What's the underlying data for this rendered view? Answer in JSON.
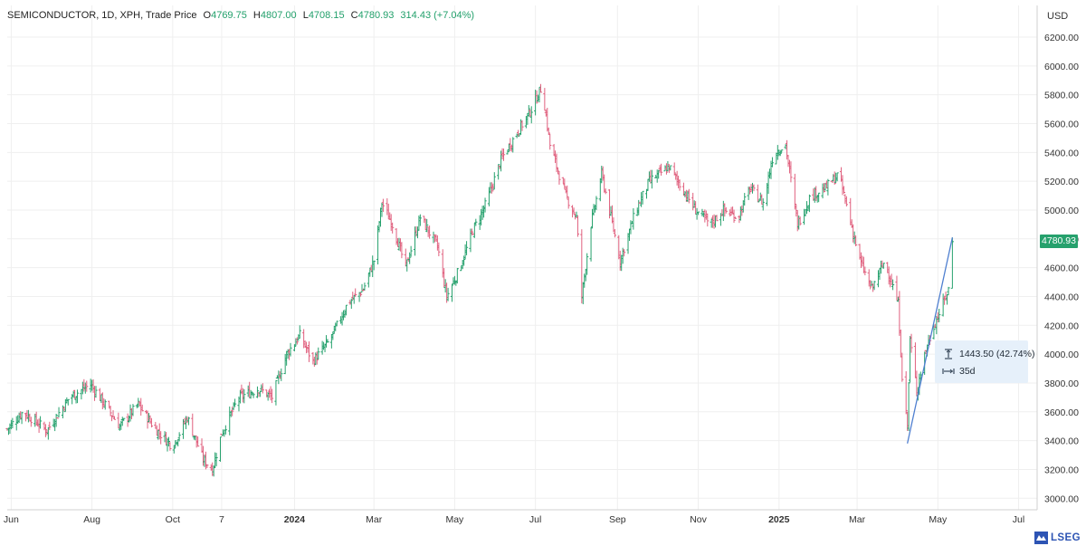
{
  "header": {
    "symbol": "SEMICONDUCTOR, 1D, XPH, Trade Price",
    "open_label": "O",
    "open_value": "4769.75",
    "high_label": "H",
    "high_value": "4807.00",
    "low_label": "L",
    "low_value": "4708.15",
    "close_label": "C",
    "close_value": "4780.93",
    "change": "314.43 (+7.04%)"
  },
  "currency": "USD",
  "last_price_badge": "4780.93",
  "measure": {
    "price_change": "1443.50 (42.74%)",
    "duration": "35d"
  },
  "logo": "LSEG",
  "colors": {
    "up": "#26a16d",
    "down": "#e0607e",
    "trendline": "#4f7fd0",
    "measure_bg": "#e6f0fa",
    "logo": "#2d54b4"
  },
  "chart_data": {
    "type": "ohlc",
    "x_tick_labels": [
      {
        "label": "Jun",
        "date": "2023-06-01",
        "bold": false
      },
      {
        "label": "Aug",
        "date": "2023-08-01",
        "bold": false
      },
      {
        "label": "Oct",
        "date": "2023-10-01",
        "bold": false
      },
      {
        "label": "7",
        "date": "2023-11-07",
        "bold": false
      },
      {
        "label": "2024",
        "date": "2024-01-01",
        "bold": true
      },
      {
        "label": "Mar",
        "date": "2024-03-01",
        "bold": false
      },
      {
        "label": "May",
        "date": "2024-05-01",
        "bold": false
      },
      {
        "label": "Jul",
        "date": "2024-07-01",
        "bold": false
      },
      {
        "label": "Sep",
        "date": "2024-09-01",
        "bold": false
      },
      {
        "label": "Nov",
        "date": "2024-11-01",
        "bold": false
      },
      {
        "label": "2025",
        "date": "2025-01-01",
        "bold": true
      },
      {
        "label": "Mar",
        "date": "2025-03-01",
        "bold": false
      },
      {
        "label": "May",
        "date": "2025-05-01",
        "bold": false
      },
      {
        "label": "Jul",
        "date": "2025-07-01",
        "bold": false
      }
    ],
    "y_tick_labels": [
      "3000.00",
      "3200.00",
      "3400.00",
      "3600.00",
      "3800.00",
      "4000.00",
      "4200.00",
      "4400.00",
      "4600.00",
      "4800.00",
      "5000.00",
      "5200.00",
      "5400.00",
      "5600.00",
      "5800.00",
      "6000.00",
      "6200.00"
    ],
    "y_ticks": [
      3000,
      3200,
      3400,
      3600,
      3800,
      4000,
      4200,
      4400,
      4600,
      4800,
      5000,
      5200,
      5400,
      5600,
      5800,
      6000,
      6200
    ],
    "ylim": [
      2920,
      6420
    ],
    "xlim": [
      "2023-05-29",
      "2025-07-15"
    ],
    "grid": true,
    "close_path": [
      [
        "2023-05-29",
        3480
      ],
      [
        "2023-06-10",
        3600
      ],
      [
        "2023-06-28",
        3470
      ],
      [
        "2023-07-15",
        3700
      ],
      [
        "2023-07-31",
        3790
      ],
      [
        "2023-08-10",
        3660
      ],
      [
        "2023-08-22",
        3500
      ],
      [
        "2023-09-05",
        3650
      ],
      [
        "2023-09-18",
        3480
      ],
      [
        "2023-10-01",
        3360
      ],
      [
        "2023-10-12",
        3560
      ],
      [
        "2023-10-24",
        3270
      ],
      [
        "2023-10-31",
        3200
      ],
      [
        "2023-11-07",
        3450
      ],
      [
        "2023-11-20",
        3700
      ],
      [
        "2023-12-05",
        3760
      ],
      [
        "2023-12-15",
        3700
      ],
      [
        "2023-12-26",
        4000
      ],
      [
        "2024-01-05",
        4130
      ],
      [
        "2024-01-15",
        3950
      ],
      [
        "2024-01-28",
        4100
      ],
      [
        "2024-02-10",
        4350
      ],
      [
        "2024-02-22",
        4450
      ],
      [
        "2024-03-01",
        4650
      ],
      [
        "2024-03-07",
        5050
      ],
      [
        "2024-03-15",
        4900
      ],
      [
        "2024-03-25",
        4600
      ],
      [
        "2024-04-05",
        4950
      ],
      [
        "2024-04-18",
        4750
      ],
      [
        "2024-04-25",
        4400
      ],
      [
        "2024-05-05",
        4600
      ],
      [
        "2024-05-15",
        4860
      ],
      [
        "2024-05-25",
        5050
      ],
      [
        "2024-06-05",
        5350
      ],
      [
        "2024-06-18",
        5550
      ],
      [
        "2024-06-28",
        5700
      ],
      [
        "2024-07-06",
        5860
      ],
      [
        "2024-07-12",
        5450
      ],
      [
        "2024-07-24",
        5100
      ],
      [
        "2024-08-01",
        4950
      ],
      [
        "2024-08-05",
        4400
      ],
      [
        "2024-08-12",
        4900
      ],
      [
        "2024-08-20",
        5250
      ],
      [
        "2024-09-03",
        4650
      ],
      [
        "2024-09-15",
        5000
      ],
      [
        "2024-09-25",
        5200
      ],
      [
        "2024-10-10",
        5300
      ],
      [
        "2024-10-20",
        5150
      ],
      [
        "2024-10-30",
        5000
      ],
      [
        "2024-11-10",
        4900
      ],
      [
        "2024-11-20",
        5000
      ],
      [
        "2024-12-01",
        4950
      ],
      [
        "2024-12-10",
        5150
      ],
      [
        "2024-12-20",
        5050
      ],
      [
        "2024-12-28",
        5400
      ],
      [
        "2025-01-06",
        5450
      ],
      [
        "2025-01-15",
        4900
      ],
      [
        "2025-01-25",
        5100
      ],
      [
        "2025-02-05",
        5150
      ],
      [
        "2025-02-15",
        5250
      ],
      [
        "2025-02-22",
        5000
      ],
      [
        "2025-03-03",
        4650
      ],
      [
        "2025-03-12",
        4450
      ],
      [
        "2025-03-22",
        4650
      ],
      [
        "2025-04-01",
        4350
      ],
      [
        "2025-04-04",
        3850
      ],
      [
        "2025-04-08",
        3500
      ],
      [
        "2025-04-10",
        4100
      ],
      [
        "2025-04-15",
        3750
      ],
      [
        "2025-04-21",
        4000
      ],
      [
        "2025-04-28",
        4200
      ],
      [
        "2025-05-05",
        4350
      ],
      [
        "2025-05-09",
        4450
      ],
      [
        "2025-05-12",
        4780.93
      ]
    ],
    "trendline": {
      "from": [
        "2025-04-08",
        3380
      ],
      "to": [
        "2025-05-12",
        4810
      ]
    }
  }
}
